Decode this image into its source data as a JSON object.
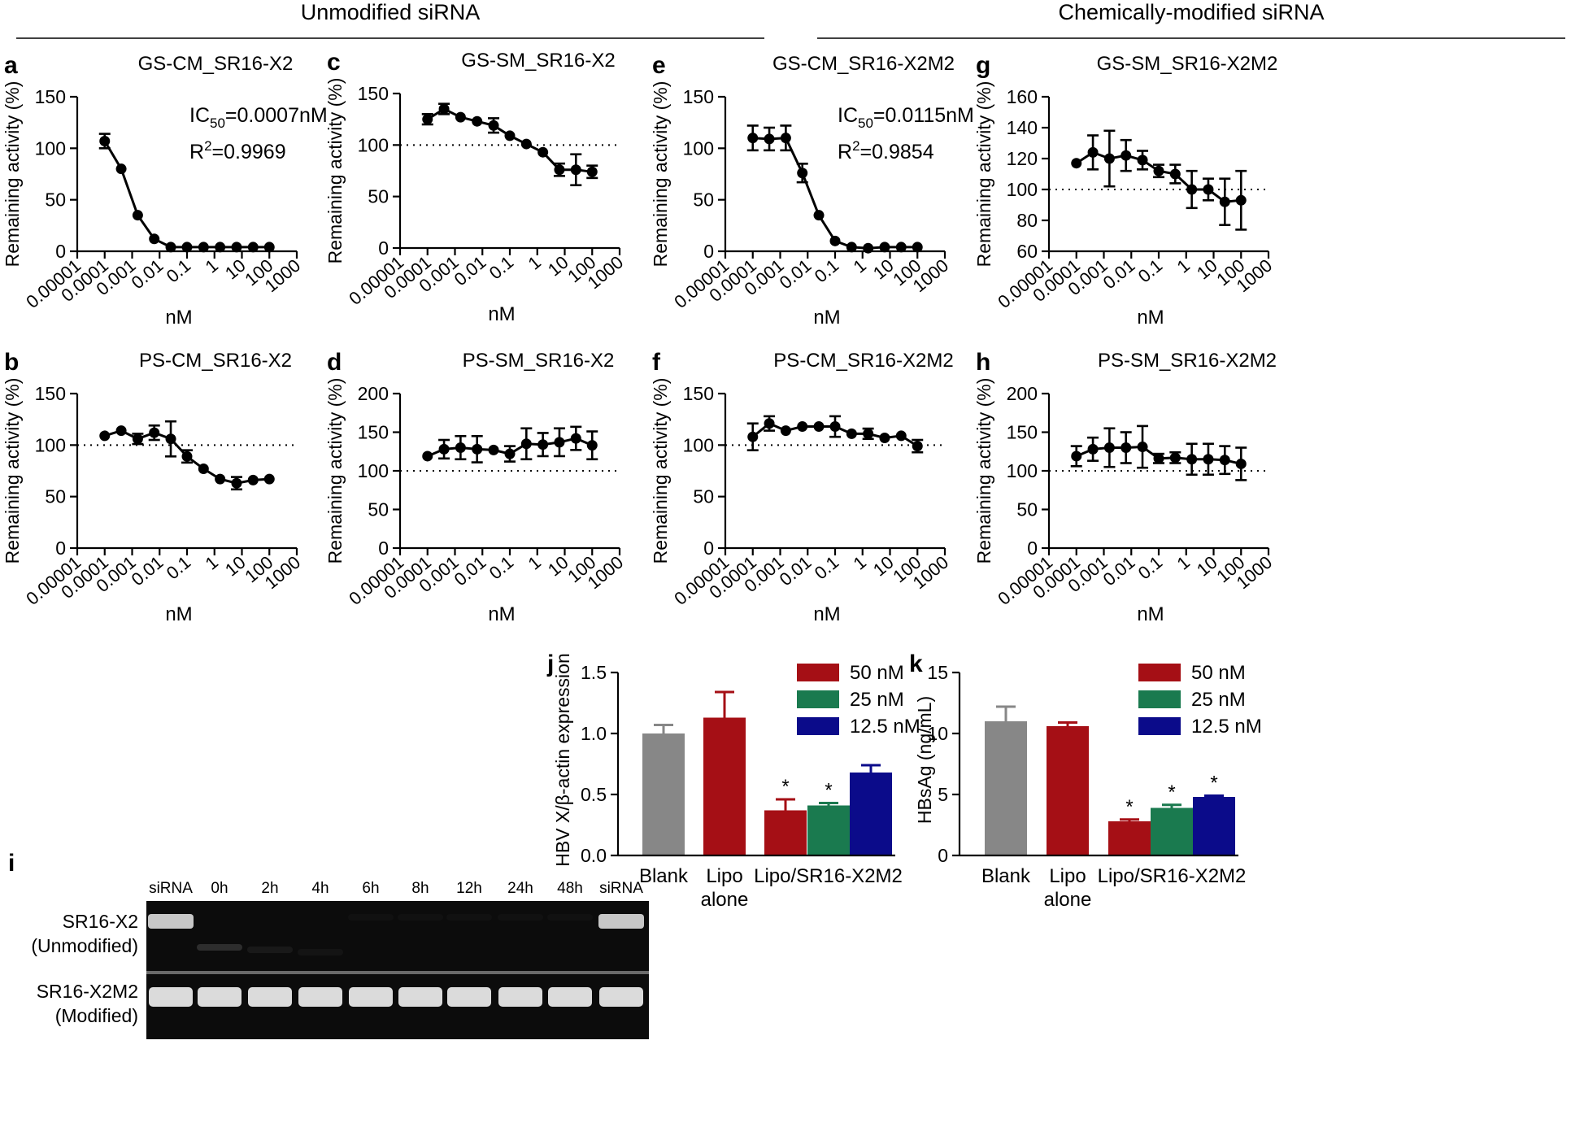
{
  "section_headers": {
    "left": "Unmodified siRNA",
    "right": "Chemically-modified siRNA"
  },
  "common_axes": {
    "ylabel": "Remaining activity (%)",
    "xlabel": "nM",
    "xticks": [
      "0.00001",
      "0.0001",
      "0.001",
      "0.01",
      "0.1",
      "1",
      "10",
      "100",
      "1000"
    ]
  },
  "chart_data": [
    {
      "id": "a",
      "type": "line",
      "panel_letter": "a",
      "title": "GS-CM_SR16-X2",
      "xscale": "log",
      "xlim": [
        1e-05,
        1000
      ],
      "ylim": [
        0,
        150
      ],
      "yticks": [
        "0",
        "50",
        "100",
        "150"
      ],
      "reference_line": null,
      "x": [
        0.0001,
        0.0004,
        0.0016,
        0.0064,
        0.0256,
        0.1,
        0.4,
        1.6,
        6.4,
        25.6,
        100
      ],
      "y": [
        107,
        80,
        35,
        12,
        4,
        4,
        4,
        4,
        4,
        4,
        4
      ],
      "err": [
        7,
        0,
        0,
        0,
        0,
        0,
        0,
        0,
        0,
        0,
        0
      ],
      "annotation": {
        "ic50_prefix": "IC",
        "ic50_sub": "50",
        "ic50_value": "=0.0007nM",
        "r2_prefix": "R",
        "r2_sup": "2",
        "r2_value": "=0.9969"
      }
    },
    {
      "id": "b",
      "type": "line",
      "panel_letter": "b",
      "title": "PS-CM_SR16-X2",
      "xscale": "log",
      "xlim": [
        1e-05,
        1000
      ],
      "ylim": [
        0,
        150
      ],
      "yticks": [
        "0",
        "50",
        "100",
        "150"
      ],
      "reference_line": 100,
      "x": [
        0.0001,
        0.0004,
        0.0016,
        0.0064,
        0.0256,
        0.1,
        0.4,
        1.6,
        6.4,
        25.6,
        100
      ],
      "y": [
        109,
        114,
        106,
        112,
        106,
        89,
        77,
        67,
        63,
        66,
        67
      ],
      "err": [
        0,
        0,
        5,
        7,
        17,
        6,
        0,
        0,
        6,
        0,
        0
      ],
      "annotation": null
    },
    {
      "id": "c",
      "type": "line",
      "panel_letter": "c",
      "title": "GS-SM_SR16-X2",
      "xscale": "log",
      "xlim": [
        1e-05,
        1000
      ],
      "ylim": [
        0,
        150
      ],
      "yticks": [
        "0",
        "50",
        "100",
        "150"
      ],
      "reference_line": 100,
      "x": [
        0.0001,
        0.0004,
        0.0016,
        0.0064,
        0.0256,
        0.1,
        0.4,
        1.6,
        6.4,
        25.6,
        100
      ],
      "y": [
        125,
        135,
        127,
        123,
        119,
        109,
        101,
        93,
        76,
        76,
        74
      ],
      "err": [
        5,
        5,
        0,
        0,
        7,
        0,
        0,
        0,
        6,
        15,
        6
      ],
      "annotation": null
    },
    {
      "id": "d",
      "type": "line",
      "panel_letter": "d",
      "title": "PS-SM_SR16-X2",
      "xscale": "log",
      "xlim": [
        1e-05,
        1000
      ],
      "ylim": [
        0,
        200
      ],
      "yticks": [
        "0",
        "50",
        "100",
        "150",
        "200"
      ],
      "reference_line": 100,
      "x": [
        0.0001,
        0.0004,
        0.0016,
        0.0064,
        0.0256,
        0.1,
        0.4,
        1.6,
        6.4,
        25.6,
        100
      ],
      "y": [
        119,
        128,
        130,
        128,
        127,
        122,
        135,
        134,
        137,
        142,
        133
      ],
      "err": [
        0,
        12,
        15,
        17,
        0,
        10,
        20,
        15,
        18,
        15,
        18
      ],
      "annotation": null
    },
    {
      "id": "e",
      "type": "line",
      "panel_letter": "e",
      "title": "GS-CM_SR16-X2M2",
      "xscale": "log",
      "xlim": [
        1e-05,
        1000
      ],
      "ylim": [
        0,
        150
      ],
      "yticks": [
        "0",
        "50",
        "100",
        "150"
      ],
      "reference_line": null,
      "x": [
        0.0001,
        0.0004,
        0.0016,
        0.0064,
        0.0256,
        0.1,
        0.4,
        1.6,
        6.4,
        25.6,
        100
      ],
      "y": [
        110,
        109,
        110,
        76,
        35,
        10,
        4,
        3,
        4,
        4,
        4
      ],
      "err": [
        12,
        11,
        12,
        9,
        0,
        0,
        0,
        0,
        0,
        0,
        0
      ],
      "annotation": {
        "ic50_prefix": "IC",
        "ic50_sub": "50",
        "ic50_value": "=0.0115nM",
        "r2_prefix": "R",
        "r2_sup": "2",
        "r2_value": "=0.9854"
      }
    },
    {
      "id": "f",
      "type": "line",
      "panel_letter": "f",
      "title": "PS-CM_SR16-X2M2",
      "xscale": "log",
      "xlim": [
        1e-05,
        1000
      ],
      "ylim": [
        0,
        150
      ],
      "yticks": [
        "0",
        "50",
        "100",
        "150"
      ],
      "reference_line": 100,
      "x": [
        0.0001,
        0.0004,
        0.0016,
        0.0064,
        0.0256,
        0.1,
        0.4,
        1.6,
        6.4,
        25.6,
        100
      ],
      "y": [
        108,
        121,
        114,
        118,
        118,
        118,
        111,
        111,
        107,
        109,
        99
      ],
      "err": [
        13,
        7,
        0,
        0,
        0,
        10,
        0,
        5,
        0,
        0,
        6
      ],
      "annotation": null
    },
    {
      "id": "g",
      "type": "line",
      "panel_letter": "g",
      "title": "GS-SM_SR16-X2M2",
      "xscale": "log",
      "xlim": [
        1e-05,
        1000
      ],
      "ylim": [
        60,
        160
      ],
      "yticks": [
        "60",
        "80",
        "100",
        "120",
        "140",
        "160"
      ],
      "reference_line": 100,
      "x": [
        0.0001,
        0.0004,
        0.0016,
        0.0064,
        0.0256,
        0.1,
        0.4,
        1.6,
        6.4,
        25.6,
        100
      ],
      "y": [
        117,
        124,
        120,
        122,
        119,
        112,
        110,
        100,
        100,
        92,
        93
      ],
      "err": [
        0,
        11,
        18,
        10,
        6,
        4,
        6,
        12,
        7,
        15,
        19
      ],
      "annotation": null
    },
    {
      "id": "h",
      "type": "line",
      "panel_letter": "h",
      "title": "PS-SM_SR16-X2M2",
      "xscale": "log",
      "xlim": [
        1e-05,
        1000
      ],
      "ylim": [
        0,
        200
      ],
      "yticks": [
        "0",
        "50",
        "100",
        "150",
        "200"
      ],
      "reference_line": 100,
      "x": [
        0.0001,
        0.0004,
        0.0016,
        0.0064,
        0.0256,
        0.1,
        0.4,
        1.6,
        6.4,
        25.6,
        100
      ],
      "y": [
        119,
        128,
        130,
        130,
        131,
        116,
        117,
        115,
        115,
        114,
        109
      ],
      "err": [
        13,
        15,
        25,
        20,
        27,
        6,
        7,
        20,
        20,
        18,
        21
      ],
      "annotation": null
    },
    {
      "id": "j",
      "type": "bar",
      "panel_letter": "j",
      "ylabel": "HBV X/β-actin expression",
      "ylim": [
        0,
        1.5
      ],
      "yticks": [
        "0.0",
        "0.5",
        "1.0",
        "1.5"
      ],
      "category_labels": [
        [
          "Blank"
        ],
        [
          "Lipo",
          "alone"
        ],
        [
          "Lipo/SR16-X2M2"
        ]
      ],
      "bars": [
        {
          "group": 0,
          "series": "Blank",
          "value": 1.0,
          "err": 0.07,
          "star": false
        },
        {
          "group": 1,
          "series": "Lipo alone",
          "value": 1.13,
          "err": 0.21,
          "star": false
        },
        {
          "group": 2,
          "series": "50 nM",
          "value": 0.37,
          "err": 0.09,
          "star": true
        },
        {
          "group": 2,
          "series": "25 nM",
          "value": 0.41,
          "err": 0.02,
          "star": true
        },
        {
          "group": 2,
          "series": "12.5 nM",
          "value": 0.68,
          "err": 0.06,
          "star": false
        }
      ],
      "star_symbol": "*",
      "legend": [
        {
          "label": "50 nM",
          "color": "#a50f15"
        },
        {
          "label": "25 nM",
          "color": "#1a7a4f"
        },
        {
          "label": "12.5 nM",
          "color": "#0b0b8a"
        }
      ]
    },
    {
      "id": "k",
      "type": "bar",
      "panel_letter": "k",
      "ylabel": "HBsAg (ng/mL)",
      "ylim": [
        0,
        15
      ],
      "yticks": [
        "0",
        "5",
        "10",
        "15"
      ],
      "category_labels": [
        [
          "Blank"
        ],
        [
          "Lipo",
          "alone"
        ],
        [
          "Lipo/SR16-X2M2"
        ]
      ],
      "bars": [
        {
          "group": 0,
          "series": "Blank",
          "value": 11.0,
          "err": 1.2,
          "star": false
        },
        {
          "group": 1,
          "series": "Lipo alone",
          "value": 10.6,
          "err": 0.3,
          "star": false
        },
        {
          "group": 2,
          "series": "50 nM",
          "value": 2.8,
          "err": 0.15,
          "star": true
        },
        {
          "group": 2,
          "series": "25 nM",
          "value": 3.9,
          "err": 0.25,
          "star": true
        },
        {
          "group": 2,
          "series": "12.5 nM",
          "value": 4.8,
          "err": 0.1,
          "star": true
        }
      ],
      "star_symbol": "*",
      "legend": [
        {
          "label": "50 nM",
          "color": "#a50f15"
        },
        {
          "label": "25 nM",
          "color": "#1a7a4f"
        },
        {
          "label": "12.5 nM",
          "color": "#0b0b8a"
        }
      ]
    }
  ],
  "gel": {
    "panel_letter": "i",
    "columns": [
      "siRNA",
      "0h",
      "2h",
      "4h",
      "6h",
      "8h",
      "12h",
      "24h",
      "48h",
      "siRNA"
    ],
    "top_row": {
      "label1": "SR16-X2",
      "label2": "(Unmodified)",
      "band_intensity": [
        0.9,
        0.35,
        0.2,
        0.12,
        0.05,
        0.03,
        0.03,
        0.02,
        0.02,
        0.9
      ]
    },
    "bottom_row": {
      "label1": "SR16-X2M2",
      "label2": "(Modified)",
      "band_intensity": [
        0.85,
        0.85,
        0.85,
        0.85,
        0.85,
        0.85,
        0.85,
        0.85,
        0.85,
        0.85
      ]
    }
  },
  "colors": {
    "blank": "#878787",
    "lipo": "#a50f15",
    "c50": "#a50f15",
    "c25": "#1a7a4f",
    "c12": "#0b0b8a"
  }
}
